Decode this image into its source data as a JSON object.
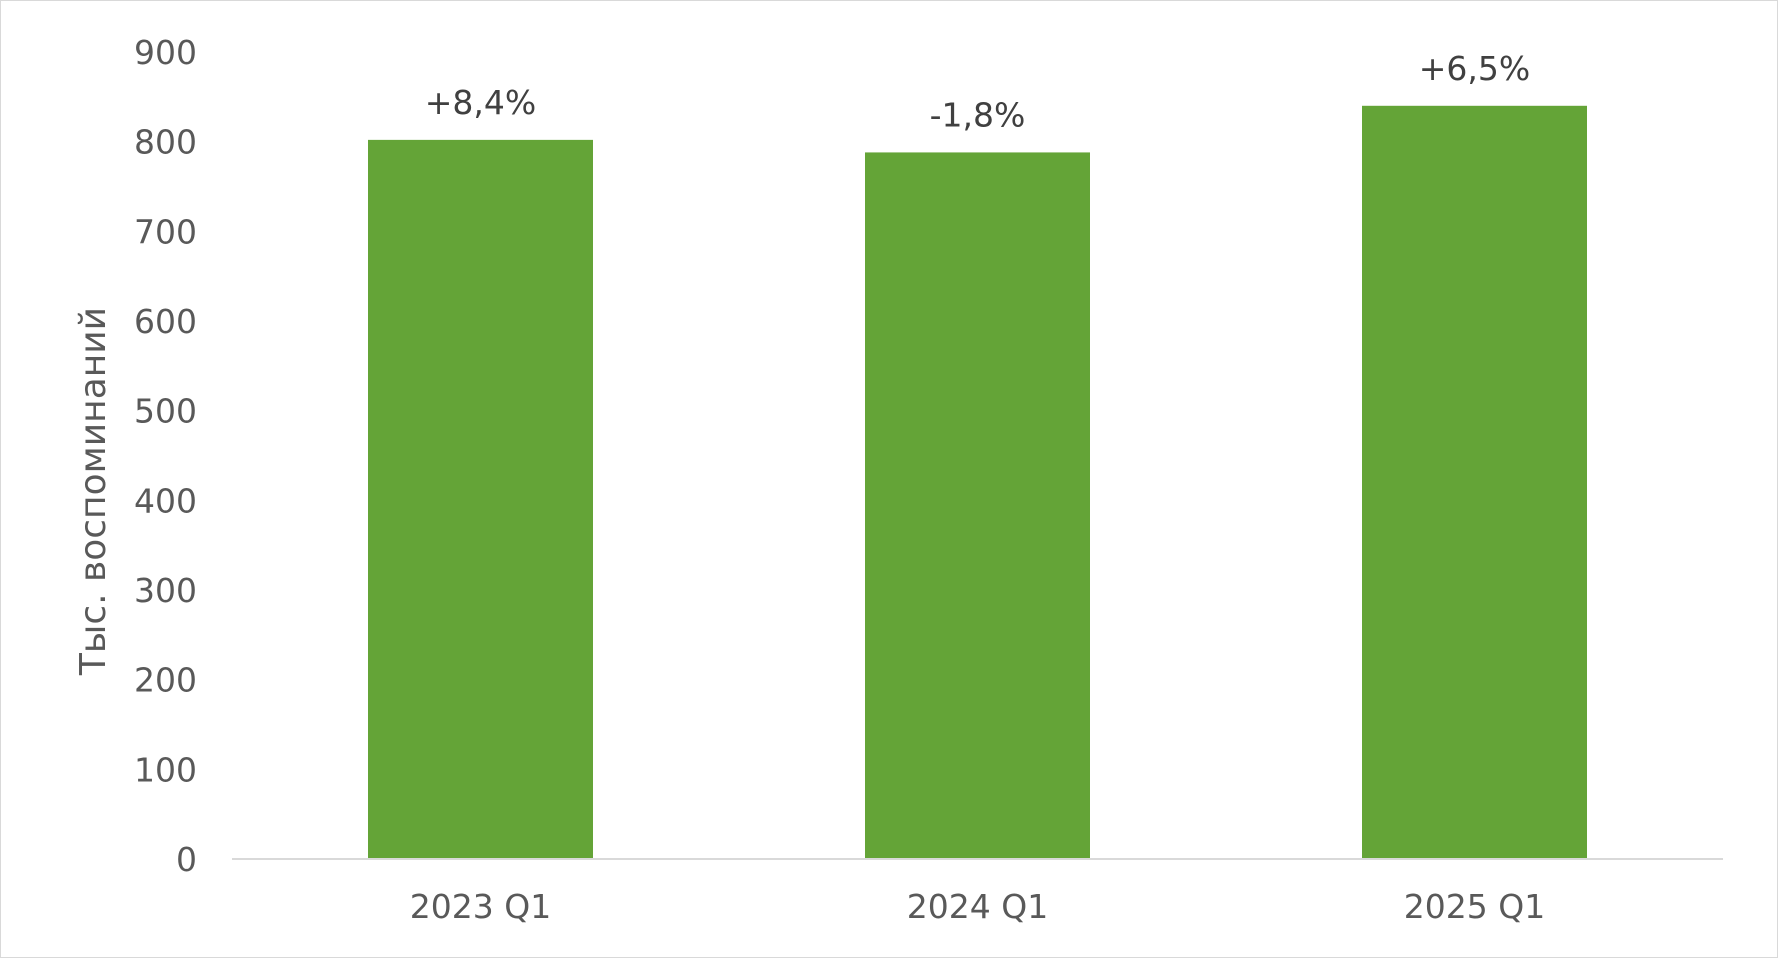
{
  "chart_data": {
    "type": "bar",
    "categories": [
      "2023 Q1",
      "2024 Q1",
      "2025 Q1"
    ],
    "values": [
      802,
      788,
      840
    ],
    "data_labels": [
      "+8,4%",
      "-1,8%",
      "+6,5%"
    ],
    "title": "",
    "xlabel": "",
    "ylabel": "Тыс. воспоминаний",
    "ylim": [
      0,
      900
    ],
    "yticks": [
      0,
      100,
      200,
      300,
      400,
      500,
      600,
      700,
      800,
      900
    ],
    "grid": false,
    "legend": "none",
    "bar_color": "#64A437",
    "axis_color": "#d9d9d9"
  }
}
